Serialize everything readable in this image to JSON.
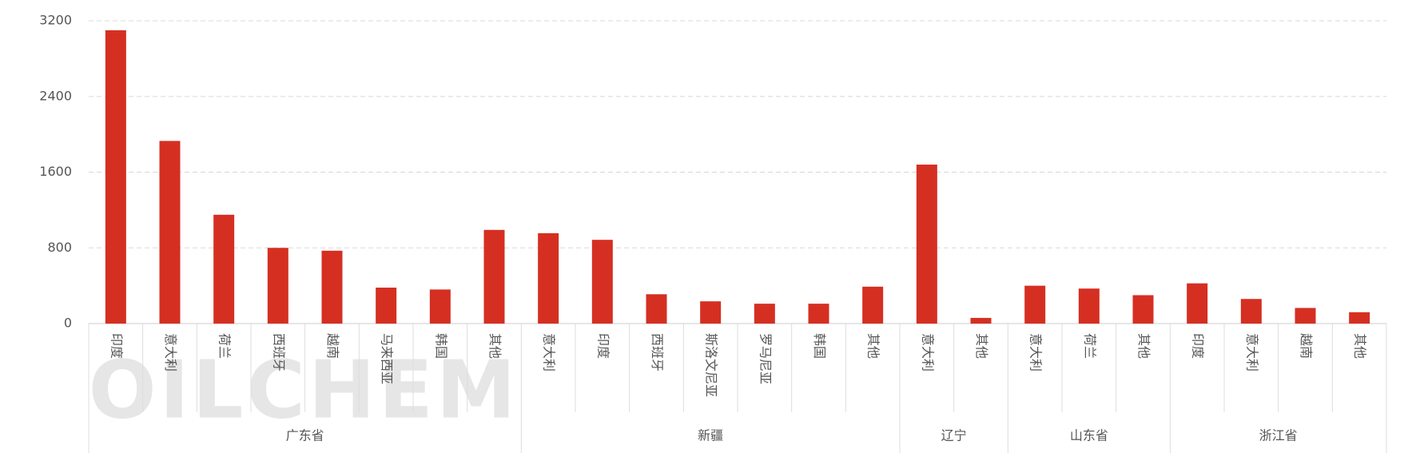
{
  "chart_data": {
    "type": "bar",
    "color": "#d52f22",
    "watermark": "OILCHEM",
    "ylim": [
      0,
      3200
    ],
    "yticks": [
      0,
      800,
      1600,
      2400,
      3200
    ],
    "grid": true,
    "groups": [
      {
        "name": "广东省",
        "categories": [
          "印度",
          "意大利",
          "荷兰",
          "西班牙",
          "越南",
          "马来西亚",
          "韩国",
          "其他"
        ],
        "values": [
          3100,
          1930,
          1150,
          800,
          770,
          380,
          360,
          990
        ]
      },
      {
        "name": "新疆",
        "categories": [
          "意大利",
          "印度",
          "西班牙",
          "斯洛文尼亚",
          "罗马尼亚",
          "韩国",
          "其他"
        ],
        "values": [
          955,
          885,
          310,
          235,
          210,
          210,
          390
        ]
      },
      {
        "name": "辽宁",
        "categories": [
          "意大利",
          "其他"
        ],
        "values": [
          1680,
          60
        ]
      },
      {
        "name": "山东省",
        "categories": [
          "意大利",
          "荷兰",
          "其他"
        ],
        "values": [
          400,
          370,
          300
        ]
      },
      {
        "name": "浙江省",
        "categories": [
          "印度",
          "意大利",
          "越南",
          "其他"
        ],
        "values": [
          425,
          260,
          165,
          120
        ]
      }
    ]
  }
}
